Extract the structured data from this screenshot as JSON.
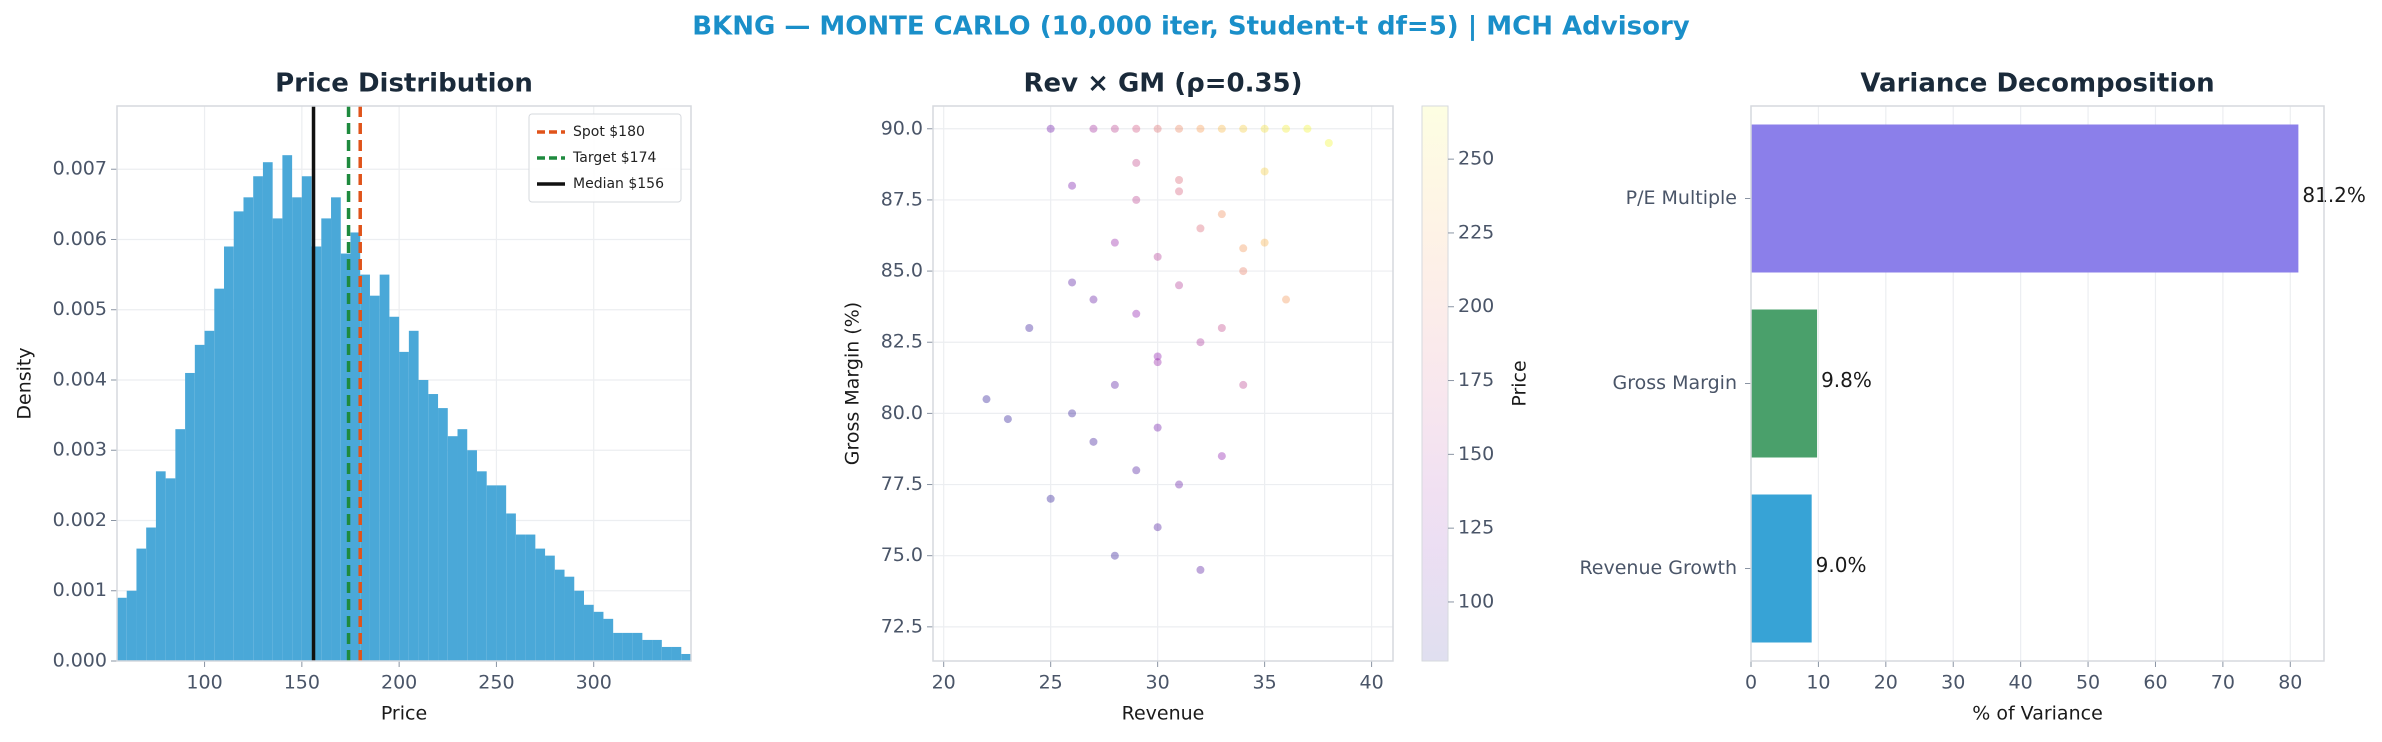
{
  "title": "BKNG — MONTE CARLO (10,000 iter, Student-t df=5) | MCH Advisory",
  "chart_data": [
    {
      "type": "histogram",
      "title": "Price Distribution",
      "xlabel": "Price",
      "ylabel": "Density",
      "color": "#4aa8d8",
      "grid": true,
      "legend": "upper right",
      "bins": [
        55,
        60,
        65,
        70,
        75,
        80,
        85,
        90,
        95,
        100,
        105,
        110,
        115,
        120,
        125,
        130,
        135,
        140,
        145,
        150,
        155,
        160,
        165,
        170,
        175,
        180,
        185,
        190,
        195,
        200,
        205,
        210,
        215,
        220,
        225,
        230,
        235,
        240,
        245,
        250,
        255,
        260,
        265,
        270,
        275,
        280,
        285,
        290,
        295,
        300,
        305,
        310,
        315,
        320,
        325,
        330,
        335,
        340,
        345,
        350
      ],
      "values": [
        0.0009,
        0.001,
        0.0016,
        0.0019,
        0.0027,
        0.0026,
        0.0033,
        0.0041,
        0.0045,
        0.0047,
        0.0053,
        0.0059,
        0.0064,
        0.0066,
        0.0069,
        0.0071,
        0.0063,
        0.0072,
        0.0066,
        0.0069,
        0.0059,
        0.0063,
        0.0066,
        0.0058,
        0.0061,
        0.0055,
        0.0052,
        0.0055,
        0.0049,
        0.0044,
        0.0047,
        0.004,
        0.0038,
        0.0036,
        0.0032,
        0.0033,
        0.003,
        0.0027,
        0.0025,
        0.0025,
        0.0021,
        0.0018,
        0.0018,
        0.0016,
        0.0015,
        0.0013,
        0.0012,
        0.001,
        0.0008,
        0.0007,
        0.0006,
        0.0004,
        0.0004,
        0.0004,
        0.0003,
        0.0003,
        0.0002,
        0.0002,
        0.0001
      ],
      "xlim": [
        55,
        350
      ],
      "xticks": [
        100,
        150,
        200,
        250,
        300
      ],
      "ylim": [
        0,
        0.0079
      ],
      "yticks": [
        {
          "value": 0,
          "label": "0.000"
        },
        {
          "value": 0.001,
          "label": "0.001"
        },
        {
          "value": 0.002,
          "label": "0.002"
        },
        {
          "value": 0.003,
          "label": "0.003"
        },
        {
          "value": 0.004,
          "label": "0.004"
        },
        {
          "value": 0.005,
          "label": "0.005"
        },
        {
          "value": 0.006,
          "label": "0.006"
        },
        {
          "value": 0.007,
          "label": "0.007"
        }
      ],
      "vlines": [
        {
          "name": "Spot $180",
          "value": 180,
          "color": "#e0531a",
          "dashed": true
        },
        {
          "name": "Target $174",
          "value": 174,
          "color": "#1e8a3e",
          "dashed": true
        },
        {
          "name": "Median $156",
          "value": 156,
          "color": "#111111",
          "dashed": false
        }
      ]
    },
    {
      "type": "scatter",
      "title": "Rev × GM (ρ=0.35)",
      "xlabel": "Revenue",
      "ylabel": "Gross Margin (%)",
      "colorbar_label": "Price",
      "colormap": "plasma",
      "grid": true,
      "x": [
        25,
        27,
        28,
        29,
        30,
        31,
        32,
        33,
        34,
        35,
        36,
        37,
        38,
        26,
        29,
        31,
        33,
        35,
        28,
        30,
        32,
        34,
        27,
        29,
        31,
        33,
        30,
        28,
        32,
        36,
        24,
        26,
        30,
        34,
        22,
        29,
        31,
        27,
        33,
        35,
        30,
        28,
        25,
        32,
        29,
        31,
        34,
        26,
        30,
        23
      ],
      "y": [
        90,
        90,
        90,
        90,
        90,
        90,
        90,
        90,
        90,
        90,
        90,
        90,
        89.5,
        88,
        87.5,
        88.2,
        87,
        88.5,
        86,
        85.5,
        86.5,
        85,
        84,
        83.5,
        84.5,
        83,
        82,
        81,
        82.5,
        84,
        83,
        80,
        79.5,
        81,
        80.5,
        78,
        77.5,
        79,
        78.5,
        86,
        76,
        75,
        77,
        74.5,
        88.8,
        87.8,
        85.8,
        84.6,
        81.8,
        79.8
      ],
      "c": [
        115,
        145,
        160,
        175,
        190,
        205,
        220,
        235,
        245,
        255,
        262,
        265,
        266,
        120,
        160,
        185,
        210,
        245,
        135,
        155,
        185,
        200,
        110,
        130,
        155,
        165,
        130,
        105,
        150,
        215,
        90,
        88,
        115,
        160,
        85,
        100,
        110,
        92,
        130,
        230,
        100,
        88,
        85,
        105,
        165,
        180,
        215,
        105,
        135,
        85
      ],
      "xlim": [
        19.5,
        41
      ],
      "xticks": [
        20,
        25,
        30,
        35,
        40
      ],
      "ylim": [
        71.3,
        90.8
      ],
      "yticks": [
        72.5,
        {
          "value": 75,
          "label": "75.0"
        },
        77.5,
        {
          "value": 80,
          "label": "80.0"
        },
        82.5,
        {
          "value": 85,
          "label": "85.0"
        },
        87.5,
        {
          "value": 90,
          "label": "90.0"
        }
      ],
      "clim": [
        80,
        268
      ],
      "cticks": [
        100,
        125,
        150,
        175,
        200,
        225,
        250
      ]
    },
    {
      "type": "hbar",
      "title": "Variance Decomposition",
      "xlabel": "% of Variance",
      "grid": true,
      "categories": [
        "P/E Multiple",
        "Gross Margin",
        "Revenue Growth"
      ],
      "values": [
        81.2,
        9.8,
        9.0
      ],
      "value_labels": [
        "81.2%",
        "9.8%",
        "9.0%"
      ],
      "colors": [
        "#8b7fea",
        "#4aa06b",
        "#37a3d6"
      ],
      "xlim": [
        0,
        85
      ],
      "xticks": [
        0,
        10,
        20,
        30,
        40,
        50,
        60,
        70,
        80
      ]
    }
  ]
}
